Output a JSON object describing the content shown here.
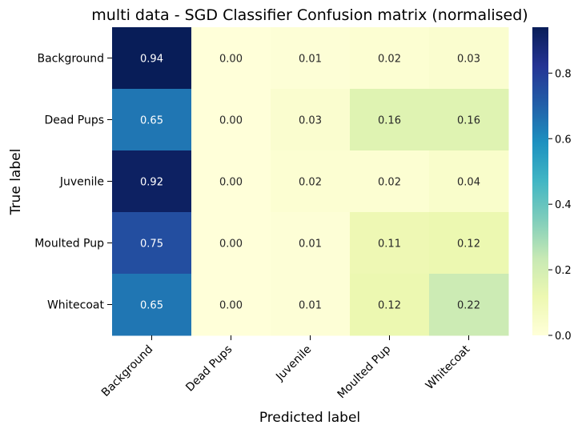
{
  "chart_data": {
    "type": "heatmap",
    "title": "multi data - SGD Classifier Confusion matrix (normalised)",
    "xlabel": "Predicted label",
    "ylabel": "True label",
    "x_categories": [
      "Background",
      "Dead Pups",
      "Juvenile",
      "Moulted Pup",
      "Whitecoat"
    ],
    "y_categories": [
      "Background",
      "Dead Pups",
      "Juvenile",
      "Moulted Pup",
      "Whitecoat"
    ],
    "values": [
      [
        0.94,
        0.0,
        0.01,
        0.02,
        0.03
      ],
      [
        0.65,
        0.0,
        0.03,
        0.16,
        0.16
      ],
      [
        0.92,
        0.0,
        0.02,
        0.02,
        0.04
      ],
      [
        0.75,
        0.0,
        0.01,
        0.11,
        0.12
      ],
      [
        0.65,
        0.0,
        0.01,
        0.12,
        0.22
      ]
    ],
    "value_labels": [
      [
        "0.94",
        "0.00",
        "0.01",
        "0.02",
        "0.03"
      ],
      [
        "0.65",
        "0.00",
        "0.03",
        "0.16",
        "0.16"
      ],
      [
        "0.92",
        "0.00",
        "0.02",
        "0.02",
        "0.04"
      ],
      [
        "0.75",
        "0.00",
        "0.01",
        "0.11",
        "0.12"
      ],
      [
        "0.65",
        "0.00",
        "0.01",
        "0.12",
        "0.22"
      ]
    ],
    "colormap": "YlGnBu",
    "vmin": 0.0,
    "vmax": 0.94,
    "colorbar_ticks": [
      "0.0",
      "0.2",
      "0.4",
      "0.6",
      "0.8"
    ],
    "colorbar_tick_values": [
      0.0,
      0.2,
      0.4,
      0.6,
      0.8
    ],
    "colormap_stops": [
      "#ffffd9",
      "#edf8b1",
      "#c7e9b4",
      "#7fcdbb",
      "#41b6c4",
      "#1d91c0",
      "#225ea8",
      "#253494",
      "#081d58"
    ],
    "text_colors": {
      "dark": "#262626",
      "light": "#ffffff"
    }
  }
}
